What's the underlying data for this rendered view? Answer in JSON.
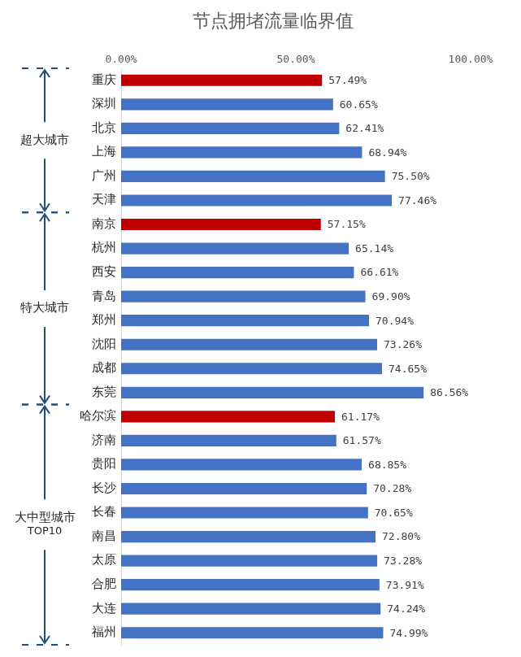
{
  "chart_data": {
    "type": "bar",
    "orientation": "horizontal",
    "title": "节点拥堵流量临界值",
    "categories": [
      "重庆",
      "深圳",
      "北京",
      "上海",
      "广州",
      "天津",
      "南京",
      "杭州",
      "西安",
      "青岛",
      "郑州",
      "沈阳",
      "成都",
      "东莞",
      "哈尔滨",
      "济南",
      "贵阳",
      "长沙",
      "长春",
      "南昌",
      "太原",
      "合肥",
      "大连",
      "福州"
    ],
    "values": [
      57.49,
      60.65,
      62.41,
      68.94,
      75.5,
      77.46,
      57.15,
      65.14,
      66.61,
      69.9,
      70.94,
      73.26,
      74.65,
      86.56,
      61.17,
      61.57,
      68.85,
      70.28,
      70.65,
      72.8,
      73.28,
      73.91,
      74.24,
      74.99
    ],
    "value_labels": [
      "57.49%",
      "60.65%",
      "62.41%",
      "68.94%",
      "75.50%",
      "77.46%",
      "57.15%",
      "65.14%",
      "66.61%",
      "69.90%",
      "70.94%",
      "73.26%",
      "74.65%",
      "86.56%",
      "61.17%",
      "61.57%",
      "68.85%",
      "70.28%",
      "70.65%",
      "72.80%",
      "73.28%",
      "73.91%",
      "74.24%",
      "74.99%"
    ],
    "colors": [
      "#c00000",
      "#4472c4",
      "#4472c4",
      "#4472c4",
      "#4472c4",
      "#4472c4",
      "#c00000",
      "#4472c4",
      "#4472c4",
      "#4472c4",
      "#4472c4",
      "#4472c4",
      "#4472c4",
      "#4472c4",
      "#c00000",
      "#4472c4",
      "#4472c4",
      "#4472c4",
      "#4472c4",
      "#4472c4",
      "#4472c4",
      "#4472c4",
      "#4472c4",
      "#4472c4"
    ],
    "xlim": [
      0,
      100
    ],
    "xticks": [
      {
        "value": 0,
        "label": "0.00%"
      },
      {
        "value": 50,
        "label": "50.00%"
      },
      {
        "value": 100,
        "label": "100.00%"
      }
    ],
    "grid": false,
    "data_labels": true,
    "annotations": [
      {
        "text": "超大城市",
        "start": "重庆",
        "end": "天津"
      },
      {
        "text": "特大城市",
        "start": "南京",
        "end": "东莞"
      },
      {
        "text": "大中型城市\nTOP10",
        "start": "哈尔滨",
        "end": "福州"
      }
    ]
  }
}
